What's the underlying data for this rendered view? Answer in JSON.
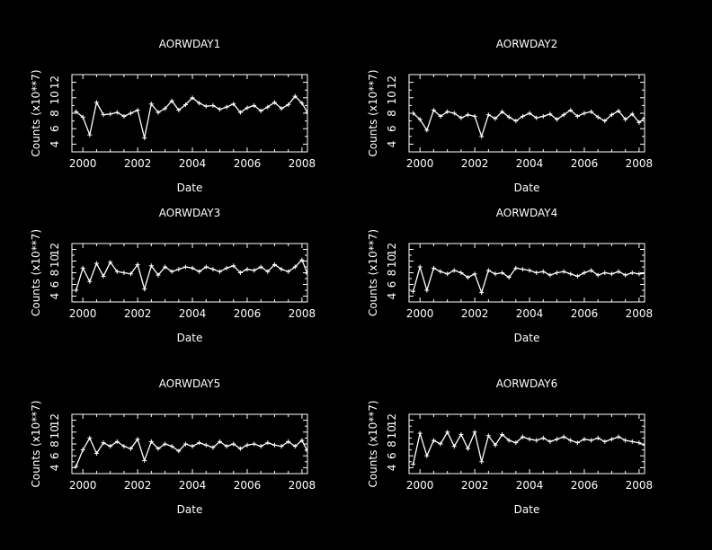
{
  "chart_data": [
    {
      "type": "line",
      "title": "AORWDAY1",
      "xlabel": "Date",
      "ylabel": "Counts (x10**7)",
      "xlim": [
        1999.6,
        2008.2
      ],
      "ylim": [
        3,
        13
      ],
      "xticks": [
        2000,
        2002,
        2004,
        2006,
        2008
      ],
      "yticks": [
        4,
        6,
        8,
        10,
        12
      ],
      "grid": false,
      "series": [
        {
          "x": [
            1999.75,
            2000.0,
            2000.25,
            2000.5,
            2000.75,
            2001.0,
            2001.25,
            2001.5,
            2001.75,
            2002.0,
            2002.25,
            2002.5,
            2002.75,
            2003.0,
            2003.25,
            2003.5,
            2003.75,
            2004.0,
            2004.25,
            2004.5,
            2004.75,
            2005.0,
            2005.25,
            2005.5,
            2005.75,
            2006.0,
            2006.25,
            2006.5,
            2006.75,
            2007.0,
            2007.25,
            2007.5,
            2007.75,
            2008.0,
            2008.2
          ],
          "values": [
            8.2,
            7.5,
            5.2,
            9.4,
            7.8,
            7.9,
            8.1,
            7.6,
            8.0,
            8.4,
            4.8,
            9.2,
            8.1,
            8.6,
            9.6,
            8.4,
            9.1,
            10.0,
            9.3,
            8.9,
            9.0,
            8.5,
            8.8,
            9.2,
            8.1,
            8.7,
            9.0,
            8.3,
            8.8,
            9.4,
            8.6,
            9.1,
            10.2,
            9.3,
            8.1
          ]
        }
      ]
    },
    {
      "type": "line",
      "title": "AORWDAY2",
      "xlabel": "Date",
      "ylabel": "Counts (x10**7)",
      "xlim": [
        1999.6,
        2008.2
      ],
      "ylim": [
        3,
        13
      ],
      "xticks": [
        2000,
        2002,
        2004,
        2006,
        2008
      ],
      "yticks": [
        4,
        6,
        8,
        10,
        12
      ],
      "grid": false,
      "series": [
        {
          "x": [
            1999.75,
            2000.0,
            2000.25,
            2000.5,
            2000.75,
            2001.0,
            2001.25,
            2001.5,
            2001.75,
            2002.0,
            2002.25,
            2002.5,
            2002.75,
            2003.0,
            2003.25,
            2003.5,
            2003.75,
            2004.0,
            2004.25,
            2004.5,
            2004.75,
            2005.0,
            2005.25,
            2005.5,
            2005.75,
            2006.0,
            2006.25,
            2006.5,
            2006.75,
            2007.0,
            2007.25,
            2007.5,
            2007.75,
            2008.0,
            2008.2
          ],
          "values": [
            8.0,
            7.2,
            5.8,
            8.4,
            7.6,
            8.2,
            8.0,
            7.4,
            7.8,
            7.6,
            5.0,
            7.8,
            7.3,
            8.2,
            7.5,
            7.0,
            7.6,
            8.0,
            7.4,
            7.6,
            7.9,
            7.2,
            7.8,
            8.4,
            7.6,
            8.0,
            8.2,
            7.5,
            7.0,
            7.8,
            8.3,
            7.2,
            7.9,
            6.8,
            7.4
          ]
        }
      ]
    },
    {
      "type": "line",
      "title": "AORWDAY3",
      "xlabel": "Date",
      "ylabel": "Counts (x10**7)",
      "xlim": [
        1999.6,
        2008.2
      ],
      "ylim": [
        3,
        13
      ],
      "xticks": [
        2000,
        2002,
        2004,
        2006,
        2008
      ],
      "yticks": [
        4,
        6,
        8,
        10,
        12
      ],
      "grid": false,
      "series": [
        {
          "x": [
            1999.75,
            2000.0,
            2000.25,
            2000.5,
            2000.75,
            2001.0,
            2001.25,
            2001.5,
            2001.75,
            2002.0,
            2002.25,
            2002.5,
            2002.75,
            2003.0,
            2003.25,
            2003.5,
            2003.75,
            2004.0,
            2004.25,
            2004.5,
            2004.75,
            2005.0,
            2005.25,
            2005.5,
            2005.75,
            2006.0,
            2006.25,
            2006.5,
            2006.75,
            2007.0,
            2007.25,
            2007.5,
            2007.75,
            2008.0,
            2008.2
          ],
          "values": [
            5.0,
            8.8,
            6.5,
            9.6,
            7.4,
            9.8,
            8.2,
            8.0,
            7.8,
            9.4,
            5.2,
            9.2,
            7.6,
            9.0,
            8.2,
            8.6,
            9.0,
            8.8,
            8.2,
            9.0,
            8.6,
            8.2,
            8.8,
            9.2,
            8.0,
            8.6,
            8.4,
            9.0,
            8.2,
            9.4,
            8.6,
            8.2,
            9.0,
            10.2,
            7.8
          ]
        }
      ]
    },
    {
      "type": "line",
      "title": "AORWDAY4",
      "xlabel": "Date",
      "ylabel": "Counts (x10**7)",
      "xlim": [
        1999.6,
        2008.2
      ],
      "ylim": [
        3,
        13
      ],
      "xticks": [
        2000,
        2002,
        2004,
        2006,
        2008
      ],
      "yticks": [
        4,
        6,
        8,
        10,
        12
      ],
      "grid": false,
      "series": [
        {
          "x": [
            1999.75,
            2000.0,
            2000.25,
            2000.5,
            2000.75,
            2001.0,
            2001.25,
            2001.5,
            2001.75,
            2002.0,
            2002.25,
            2002.5,
            2002.75,
            2003.0,
            2003.25,
            2003.5,
            2003.75,
            2004.0,
            2004.25,
            2004.5,
            2004.75,
            2005.0,
            2005.25,
            2005.5,
            2005.75,
            2006.0,
            2006.25,
            2006.5,
            2006.75,
            2007.0,
            2007.25,
            2007.5,
            2007.75,
            2008.0,
            2008.2
          ],
          "values": [
            4.8,
            9.0,
            5.0,
            8.8,
            8.2,
            7.8,
            8.4,
            8.0,
            7.2,
            7.8,
            4.6,
            8.4,
            7.8,
            8.0,
            7.2,
            8.8,
            8.6,
            8.4,
            8.0,
            8.2,
            7.6,
            8.0,
            8.2,
            7.8,
            7.4,
            8.0,
            8.4,
            7.6,
            8.0,
            7.8,
            8.2,
            7.6,
            8.0,
            7.8,
            7.9
          ]
        }
      ]
    },
    {
      "type": "line",
      "title": "AORWDAY5",
      "xlabel": "Date",
      "ylabel": "Counts (x10**7)",
      "xlim": [
        1999.6,
        2008.2
      ],
      "ylim": [
        3,
        13
      ],
      "xticks": [
        2000,
        2002,
        2004,
        2006,
        2008
      ],
      "yticks": [
        4,
        6,
        8,
        10,
        12
      ],
      "grid": false,
      "series": [
        {
          "x": [
            1999.75,
            2000.0,
            2000.25,
            2000.5,
            2000.75,
            2001.0,
            2001.25,
            2001.5,
            2001.75,
            2002.0,
            2002.25,
            2002.5,
            2002.75,
            2003.0,
            2003.25,
            2003.5,
            2003.75,
            2004.0,
            2004.25,
            2004.5,
            2004.75,
            2005.0,
            2005.25,
            2005.5,
            2005.75,
            2006.0,
            2006.25,
            2006.5,
            2006.75,
            2007.0,
            2007.25,
            2007.5,
            2007.75,
            2008.0,
            2008.2
          ],
          "values": [
            4.2,
            7.0,
            9.0,
            6.4,
            8.2,
            7.6,
            8.4,
            7.6,
            7.2,
            8.8,
            5.2,
            8.4,
            7.2,
            8.0,
            7.6,
            6.8,
            8.0,
            7.6,
            8.2,
            7.8,
            7.4,
            8.4,
            7.6,
            8.0,
            7.2,
            7.8,
            8.0,
            7.6,
            8.2,
            7.8,
            7.6,
            8.4,
            7.6,
            8.6,
            6.8
          ]
        }
      ]
    },
    {
      "type": "line",
      "title": "AORWDAY6",
      "xlabel": "Date",
      "ylabel": "Counts (x10**7)",
      "xlim": [
        1999.6,
        2008.2
      ],
      "ylim": [
        3,
        13
      ],
      "xticks": [
        2000,
        2002,
        2004,
        2006,
        2008
      ],
      "yticks": [
        4,
        6,
        8,
        10,
        12
      ],
      "grid": false,
      "series": [
        {
          "x": [
            1999.75,
            2000.0,
            2000.25,
            2000.5,
            2000.75,
            2001.0,
            2001.25,
            2001.5,
            2001.75,
            2002.0,
            2002.25,
            2002.5,
            2002.75,
            2003.0,
            2003.25,
            2003.5,
            2003.75,
            2004.0,
            2004.25,
            2004.5,
            2004.75,
            2005.0,
            2005.25,
            2005.5,
            2005.75,
            2006.0,
            2006.25,
            2006.5,
            2006.75,
            2007.0,
            2007.25,
            2007.5,
            2007.75,
            2008.0,
            2008.2
          ],
          "values": [
            4.6,
            9.8,
            6.0,
            8.6,
            8.0,
            10.0,
            7.6,
            9.6,
            7.2,
            10.0,
            5.0,
            9.4,
            7.8,
            9.6,
            8.6,
            8.2,
            9.2,
            8.8,
            8.6,
            9.0,
            8.4,
            8.8,
            9.2,
            8.6,
            8.2,
            8.8,
            8.6,
            9.0,
            8.4,
            8.8,
            9.2,
            8.6,
            8.4,
            8.2,
            7.8
          ]
        }
      ]
    }
  ]
}
